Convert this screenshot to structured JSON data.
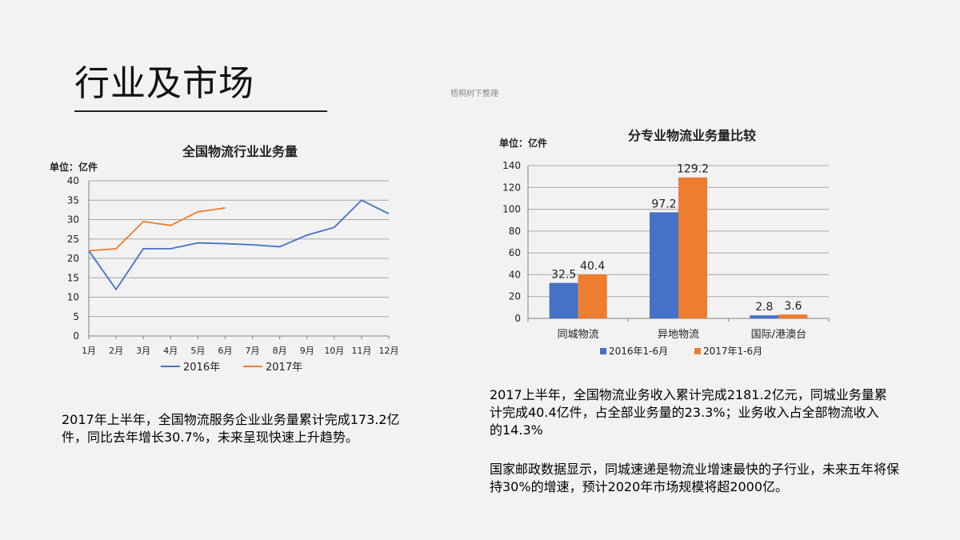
{
  "slide": {
    "title": "行业及市场",
    "watermark": "梧桐树下整理"
  },
  "left_chart_unit": "单位：亿件",
  "right_chart_unit": "单位：亿件",
  "text": {
    "left_paragraph": "2017年上半年，全国物流服务企业业务量累计完成173.2亿件，同比去年增长30.7%，未来呈现快速上升趋势。",
    "right_paragraph_1": "2017上半年，全国物流业务收入累计完成2181.2亿元，同城业务量累计完成40.4亿件，占全部业务量的23.3%；业务收入占全部物流收入的14.3%",
    "right_paragraph_2": "国家邮政数据显示，同城速递是物流业增速最快的子行业，未来五年将保持30%的增速，预计2020年市场规模将超2000亿。"
  },
  "chart_data": [
    {
      "type": "line",
      "title": "全国物流行业业务量",
      "xlabel": "",
      "ylabel": "",
      "categories": [
        "1月",
        "2月",
        "3月",
        "4月",
        "5月",
        "6月",
        "7月",
        "8月",
        "9月",
        "10月",
        "11月",
        "12月"
      ],
      "ylim": [
        0,
        40
      ],
      "yticks": [
        0,
        5,
        10,
        15,
        20,
        25,
        30,
        35,
        40
      ],
      "grid": true,
      "legend": "bottom",
      "series": [
        {
          "name": "2016年",
          "color": "#4472c4",
          "values": [
            22,
            12,
            22.5,
            22.5,
            24,
            23.8,
            23.5,
            23,
            26,
            28,
            35,
            31.5
          ]
        },
        {
          "name": "2017年",
          "color": "#ed7d31",
          "values": [
            22,
            22.5,
            29.5,
            28.5,
            32,
            33,
            null,
            null,
            null,
            null,
            null,
            null
          ]
        }
      ]
    },
    {
      "type": "bar",
      "title": "分专业物流业务量比较",
      "xlabel": "",
      "ylabel": "",
      "categories": [
        "同城物流",
        "异地物流",
        "国际/港澳台"
      ],
      "ylim": [
        0,
        140
      ],
      "yticks": [
        0,
        20,
        40,
        60,
        80,
        100,
        120,
        140
      ],
      "grid": true,
      "legend": "bottom",
      "series": [
        {
          "name": "2016年1-6月",
          "color": "#4472c4",
          "values": [
            32.5,
            97.2,
            2.8
          ],
          "labels": [
            "32.5",
            "97.2",
            "2.8"
          ]
        },
        {
          "name": "2017年1-6月",
          "color": "#ed7d31",
          "values": [
            40.4,
            129.2,
            3.6
          ],
          "labels": [
            "40.4",
            "129.2",
            "3.6"
          ]
        }
      ]
    }
  ]
}
